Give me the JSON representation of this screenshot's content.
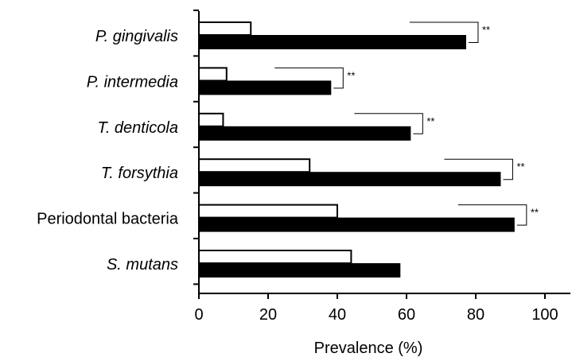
{
  "chart_data": {
    "type": "bar",
    "orientation": "horizontal",
    "categories": [
      {
        "label": "P. gingivalis",
        "italic": true
      },
      {
        "label": "P. intermedia",
        "italic": true
      },
      {
        "label": "T. denticola",
        "italic": true
      },
      {
        "label": "T. forsythia",
        "italic": true
      },
      {
        "label": "Periodontal bacteria",
        "italic": false
      },
      {
        "label": "S. mutans",
        "italic": true
      }
    ],
    "series": [
      {
        "fill": "#ffffff",
        "values": [
          15,
          8,
          7,
          32,
          40,
          44
        ]
      },
      {
        "fill": "#000000",
        "values": [
          77,
          38,
          61,
          87,
          91,
          58
        ]
      }
    ],
    "significance": [
      {
        "category_index": 0,
        "label": "**"
      },
      {
        "category_index": 1,
        "label": "**"
      },
      {
        "category_index": 2,
        "label": "**"
      },
      {
        "category_index": 3,
        "label": "**"
      },
      {
        "category_index": 4,
        "label": "**"
      }
    ],
    "xlabel": "Prevalence  (%)",
    "xlim": [
      0,
      100
    ],
    "xticks": [
      0,
      20,
      40,
      60,
      80,
      100
    ],
    "grid": false
  }
}
